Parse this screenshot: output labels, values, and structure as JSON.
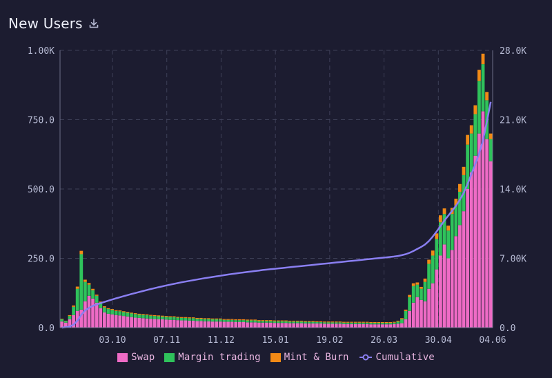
{
  "header": {
    "title": "New Users",
    "download_icon": "download-icon"
  },
  "colors": {
    "background": "#1c1c30",
    "swap": "#ee6bc5",
    "margin": "#2fc25b",
    "mint": "#f28a16",
    "cumulative": "#8a7ff2",
    "grid": "#3e4058",
    "axis": "#6b6e88"
  },
  "legend": {
    "swap": "Swap",
    "margin": "Margin trading",
    "mint": "Mint & Burn",
    "cumulative": "Cumulative"
  },
  "chart_data": {
    "type": "bar",
    "stacked": true,
    "title": "New Users",
    "x_tick_labels": [
      "03.10",
      "07.11",
      "11.12",
      "15.01",
      "19.02",
      "26.03",
      "30.04",
      "04.06"
    ],
    "y_left": {
      "range": [
        0,
        1000
      ],
      "tick_labels": [
        "0.0",
        "250.0",
        "500.0",
        "750.0",
        "1.00K"
      ]
    },
    "y_right": {
      "range": [
        0,
        28000
      ],
      "tick_labels": [
        "0.0",
        "7.00K",
        "14.0K",
        "21.0K",
        "28.0K"
      ]
    },
    "grid": true,
    "legend_position": "bottom",
    "series": [
      {
        "name": "Swap",
        "axis": "left",
        "values": [
          22,
          18,
          30,
          45,
          60,
          65,
          95,
          115,
          105,
          90,
          70,
          55,
          50,
          48,
          45,
          44,
          42,
          40,
          38,
          36,
          35,
          34,
          33,
          32,
          31,
          30,
          30,
          29,
          28,
          28,
          27,
          26,
          26,
          25,
          25,
          24,
          24,
          23,
          23,
          22,
          22,
          22,
          21,
          21,
          21,
          20,
          20,
          20,
          19,
          19,
          19,
          18,
          18,
          18,
          18,
          17,
          17,
          17,
          17,
          16,
          16,
          16,
          16,
          15,
          15,
          15,
          15,
          15,
          14,
          14,
          14,
          14,
          14,
          13,
          13,
          13,
          13,
          13,
          13,
          13,
          12,
          12,
          12,
          12,
          12,
          12,
          13,
          14,
          16,
          30,
          60,
          90,
          110,
          100,
          95,
          140,
          160,
          210,
          260,
          300,
          250,
          280,
          330,
          370,
          420,
          500,
          560,
          620,
          700,
          780,
          680,
          600
        ]
      },
      {
        "name": "Margin trading",
        "axis": "left",
        "values": [
          8,
          6,
          12,
          30,
          80,
          200,
          70,
          40,
          30,
          25,
          20,
          18,
          17,
          16,
          15,
          15,
          14,
          14,
          13,
          13,
          12,
          12,
          12,
          11,
          11,
          11,
          10,
          10,
          10,
          10,
          9,
          9,
          9,
          9,
          9,
          8,
          8,
          8,
          8,
          8,
          8,
          8,
          7,
          7,
          7,
          7,
          7,
          7,
          7,
          7,
          7,
          6,
          6,
          6,
          6,
          6,
          6,
          6,
          6,
          6,
          6,
          6,
          6,
          6,
          6,
          6,
          5,
          5,
          5,
          5,
          5,
          5,
          5,
          5,
          5,
          5,
          5,
          5,
          5,
          5,
          5,
          5,
          5,
          5,
          5,
          5,
          5,
          8,
          14,
          30,
          50,
          60,
          45,
          40,
          70,
          90,
          100,
          110,
          120,
          110,
          100,
          130,
          110,
          120,
          130,
          160,
          140,
          150,
          190,
          170,
          140,
          80
        ]
      },
      {
        "name": "Mint & Burn",
        "axis": "left",
        "values": [
          2,
          1,
          3,
          5,
          8,
          12,
          8,
          6,
          5,
          4,
          4,
          4,
          3,
          3,
          3,
          3,
          3,
          3,
          3,
          3,
          3,
          3,
          3,
          3,
          3,
          3,
          3,
          3,
          3,
          3,
          3,
          3,
          3,
          3,
          3,
          3,
          3,
          3,
          3,
          3,
          3,
          3,
          3,
          3,
          3,
          3,
          3,
          3,
          3,
          3,
          3,
          3,
          3,
          3,
          3,
          3,
          3,
          3,
          3,
          3,
          3,
          3,
          3,
          3,
          3,
          3,
          3,
          3,
          3,
          3,
          3,
          3,
          3,
          3,
          3,
          3,
          3,
          3,
          3,
          3,
          3,
          3,
          3,
          3,
          3,
          3,
          3,
          3,
          4,
          5,
          8,
          10,
          8,
          7,
          12,
          15,
          18,
          20,
          25,
          20,
          18,
          22,
          25,
          28,
          30,
          35,
          30,
          32,
          40,
          38,
          30,
          20
        ]
      },
      {
        "name": "Cumulative",
        "axis": "right",
        "type": "line",
        "values": [
          0,
          40,
          120,
          300,
          700,
          1300,
          1750,
          2000,
          2200,
          2350,
          2480,
          2600,
          2720,
          2840,
          2960,
          3070,
          3180,
          3290,
          3400,
          3500,
          3600,
          3700,
          3800,
          3900,
          3990,
          4080,
          4170,
          4260,
          4340,
          4420,
          4500,
          4580,
          4650,
          4720,
          4790,
          4860,
          4930,
          5000,
          5060,
          5120,
          5180,
          5240,
          5300,
          5360,
          5420,
          5470,
          5520,
          5570,
          5620,
          5670,
          5720,
          5770,
          5820,
          5860,
          5900,
          5940,
          5980,
          6020,
          6060,
          6100,
          6140,
          6180,
          6220,
          6260,
          6300,
          6340,
          6380,
          6420,
          6460,
          6500,
          6540,
          6580,
          6620,
          6660,
          6700,
          6740,
          6780,
          6820,
          6860,
          6900,
          6940,
          6980,
          7020,
          7060,
          7100,
          7140,
          7180,
          7240,
          7320,
          7420,
          7560,
          7740,
          7950,
          8150,
          8400,
          8750,
          9200,
          9700,
          10250,
          10800,
          11300,
          11800,
          12300,
          12900,
          13600,
          14500,
          15500,
          16500,
          17600,
          18900,
          20800,
          22800
        ]
      }
    ]
  }
}
